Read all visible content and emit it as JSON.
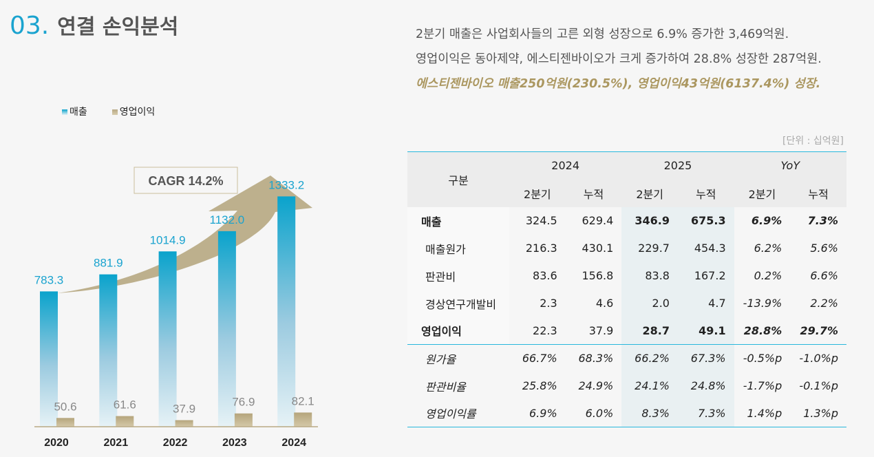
{
  "header": {
    "number": "03.",
    "title": "연결 손익분석"
  },
  "summary": {
    "line1": "2분기 매출은 사업회사들의 고른 외형 성장으로 6.9% 증가한 3,469억원.",
    "line2": "영업이익은 동아제약, 에스티젠바이오가 크게 증가하여 28.8% 성장한 287억원.",
    "line3": "에스티젠바이오 매출250억원(230.5%), 영업이익43억원(6137.4%) 성장."
  },
  "colors": {
    "revenue": "#0aa3cc",
    "profit": "#b8a984",
    "accent": "#27b7dc",
    "highlight": "#ab9760"
  },
  "chart_data": {
    "type": "bar",
    "categories": [
      "2020",
      "2021",
      "2022",
      "2023",
      "2024"
    ],
    "series": [
      {
        "name": "매출",
        "values": [
          783.3,
          881.9,
          1014.9,
          1132.0,
          1333.2
        ],
        "labels": [
          "783.3",
          "881.9",
          "1014.9",
          "1132.0",
          "1333.2"
        ]
      },
      {
        "name": "영업이익",
        "values": [
          50.6,
          61.6,
          37.9,
          76.9,
          82.1
        ],
        "labels": [
          "50.6",
          "61.6",
          "37.9",
          "76.9",
          "82.1"
        ]
      }
    ],
    "annotation": "CAGR 14.2%",
    "legend": "top-left",
    "grid": false
  },
  "table": {
    "unit": "[단위 : 십억원]",
    "corner": "구분",
    "groups": [
      "2024",
      "2025",
      "YoY"
    ],
    "subheaders": [
      "2분기",
      "누적",
      "2분기",
      "누적",
      "2분기",
      "누적"
    ],
    "rows": [
      {
        "label": "매출",
        "values": [
          "324.5",
          "629.4",
          "346.9",
          "675.3",
          "6.9%",
          "7.3%"
        ],
        "type": "main"
      },
      {
        "label": "매출원가",
        "values": [
          "216.3",
          "430.1",
          "229.7",
          "454.3",
          "6.2%",
          "5.6%"
        ],
        "type": "sub"
      },
      {
        "label": "판관비",
        "values": [
          "83.6",
          "156.8",
          "83.8",
          "167.2",
          "0.2%",
          "6.6%"
        ],
        "type": "sub"
      },
      {
        "label": "경상연구개발비",
        "values": [
          "2.3",
          "4.6",
          "2.0",
          "4.7",
          "-13.9%",
          "2.2%"
        ],
        "type": "sub"
      },
      {
        "label": "영업이익",
        "values": [
          "22.3",
          "37.9",
          "28.7",
          "49.1",
          "28.8%",
          "29.7%"
        ],
        "type": "main"
      },
      {
        "label": "원가율",
        "values": [
          "66.7%",
          "68.3%",
          "66.2%",
          "67.3%",
          "-0.5%p",
          "-1.0%p"
        ],
        "type": "ratio"
      },
      {
        "label": "판관비율",
        "values": [
          "25.8%",
          "24.9%",
          "24.1%",
          "24.8%",
          "-1.7%p",
          "-0.1%p"
        ],
        "type": "ratio"
      },
      {
        "label": "영업이익률",
        "values": [
          "6.9%",
          "6.0%",
          "8.3%",
          "7.3%",
          "1.4%p",
          "1.3%p"
        ],
        "type": "ratio"
      }
    ]
  }
}
